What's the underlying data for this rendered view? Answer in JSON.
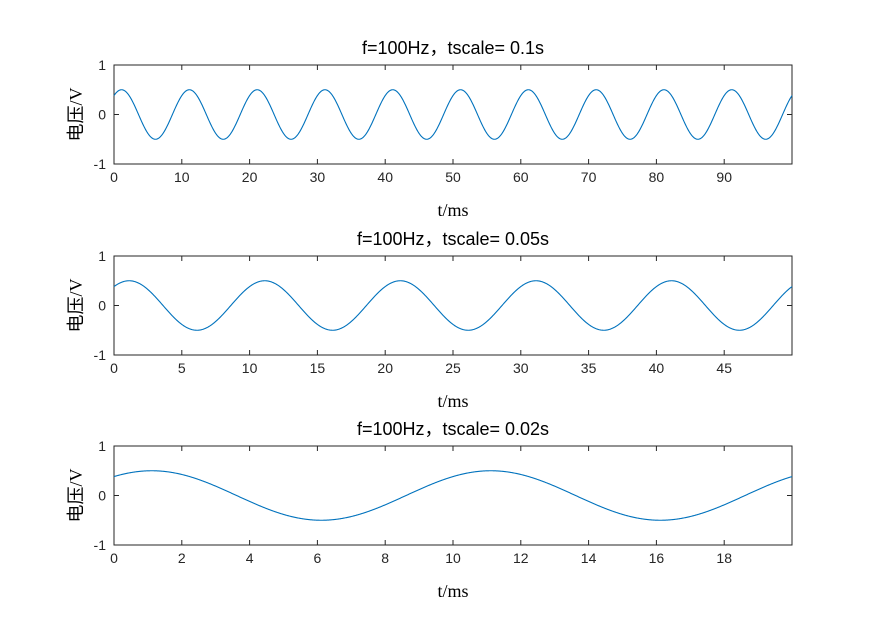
{
  "chart_data": [
    {
      "type": "line",
      "title": "f=100Hz，tscale= 0.1s",
      "xlabel": "t/ms",
      "ylabel": "电压/V",
      "xlim": [
        0,
        100
      ],
      "ylim": [
        -1,
        1
      ],
      "xticks": [
        0,
        10,
        20,
        30,
        40,
        50,
        60,
        70,
        80,
        90
      ],
      "yticks": [
        -1,
        0,
        1
      ],
      "grid": false,
      "series": [
        {
          "function": "0.5*sin(2*pi*100*t + 0.87)",
          "frequency_hz": 100,
          "amplitude": 0.5,
          "color": "#0072BD"
        }
      ]
    },
    {
      "type": "line",
      "title": "f=100Hz，tscale= 0.05s",
      "xlabel": "t/ms",
      "ylabel": "电压/V",
      "xlim": [
        0,
        50
      ],
      "ylim": [
        -1,
        1
      ],
      "xticks": [
        0,
        5,
        10,
        15,
        20,
        25,
        30,
        35,
        40,
        45
      ],
      "yticks": [
        -1,
        0,
        1
      ],
      "grid": false,
      "series": [
        {
          "function": "0.5*sin(2*pi*100*t + 0.87)",
          "frequency_hz": 100,
          "amplitude": 0.5,
          "color": "#0072BD"
        }
      ]
    },
    {
      "type": "line",
      "title": "f=100Hz，tscale= 0.02s",
      "xlabel": "t/ms",
      "ylabel": "电压/V",
      "xlim": [
        0,
        20
      ],
      "ylim": [
        -1,
        1
      ],
      "xticks": [
        0,
        2,
        4,
        6,
        8,
        10,
        12,
        14,
        16,
        18
      ],
      "yticks": [
        -1,
        0,
        1
      ],
      "grid": false,
      "series": [
        {
          "function": "0.5*sin(2*pi*100*t + 0.87)",
          "frequency_hz": 100,
          "amplitude": 0.5,
          "color": "#0072BD"
        }
      ]
    }
  ]
}
